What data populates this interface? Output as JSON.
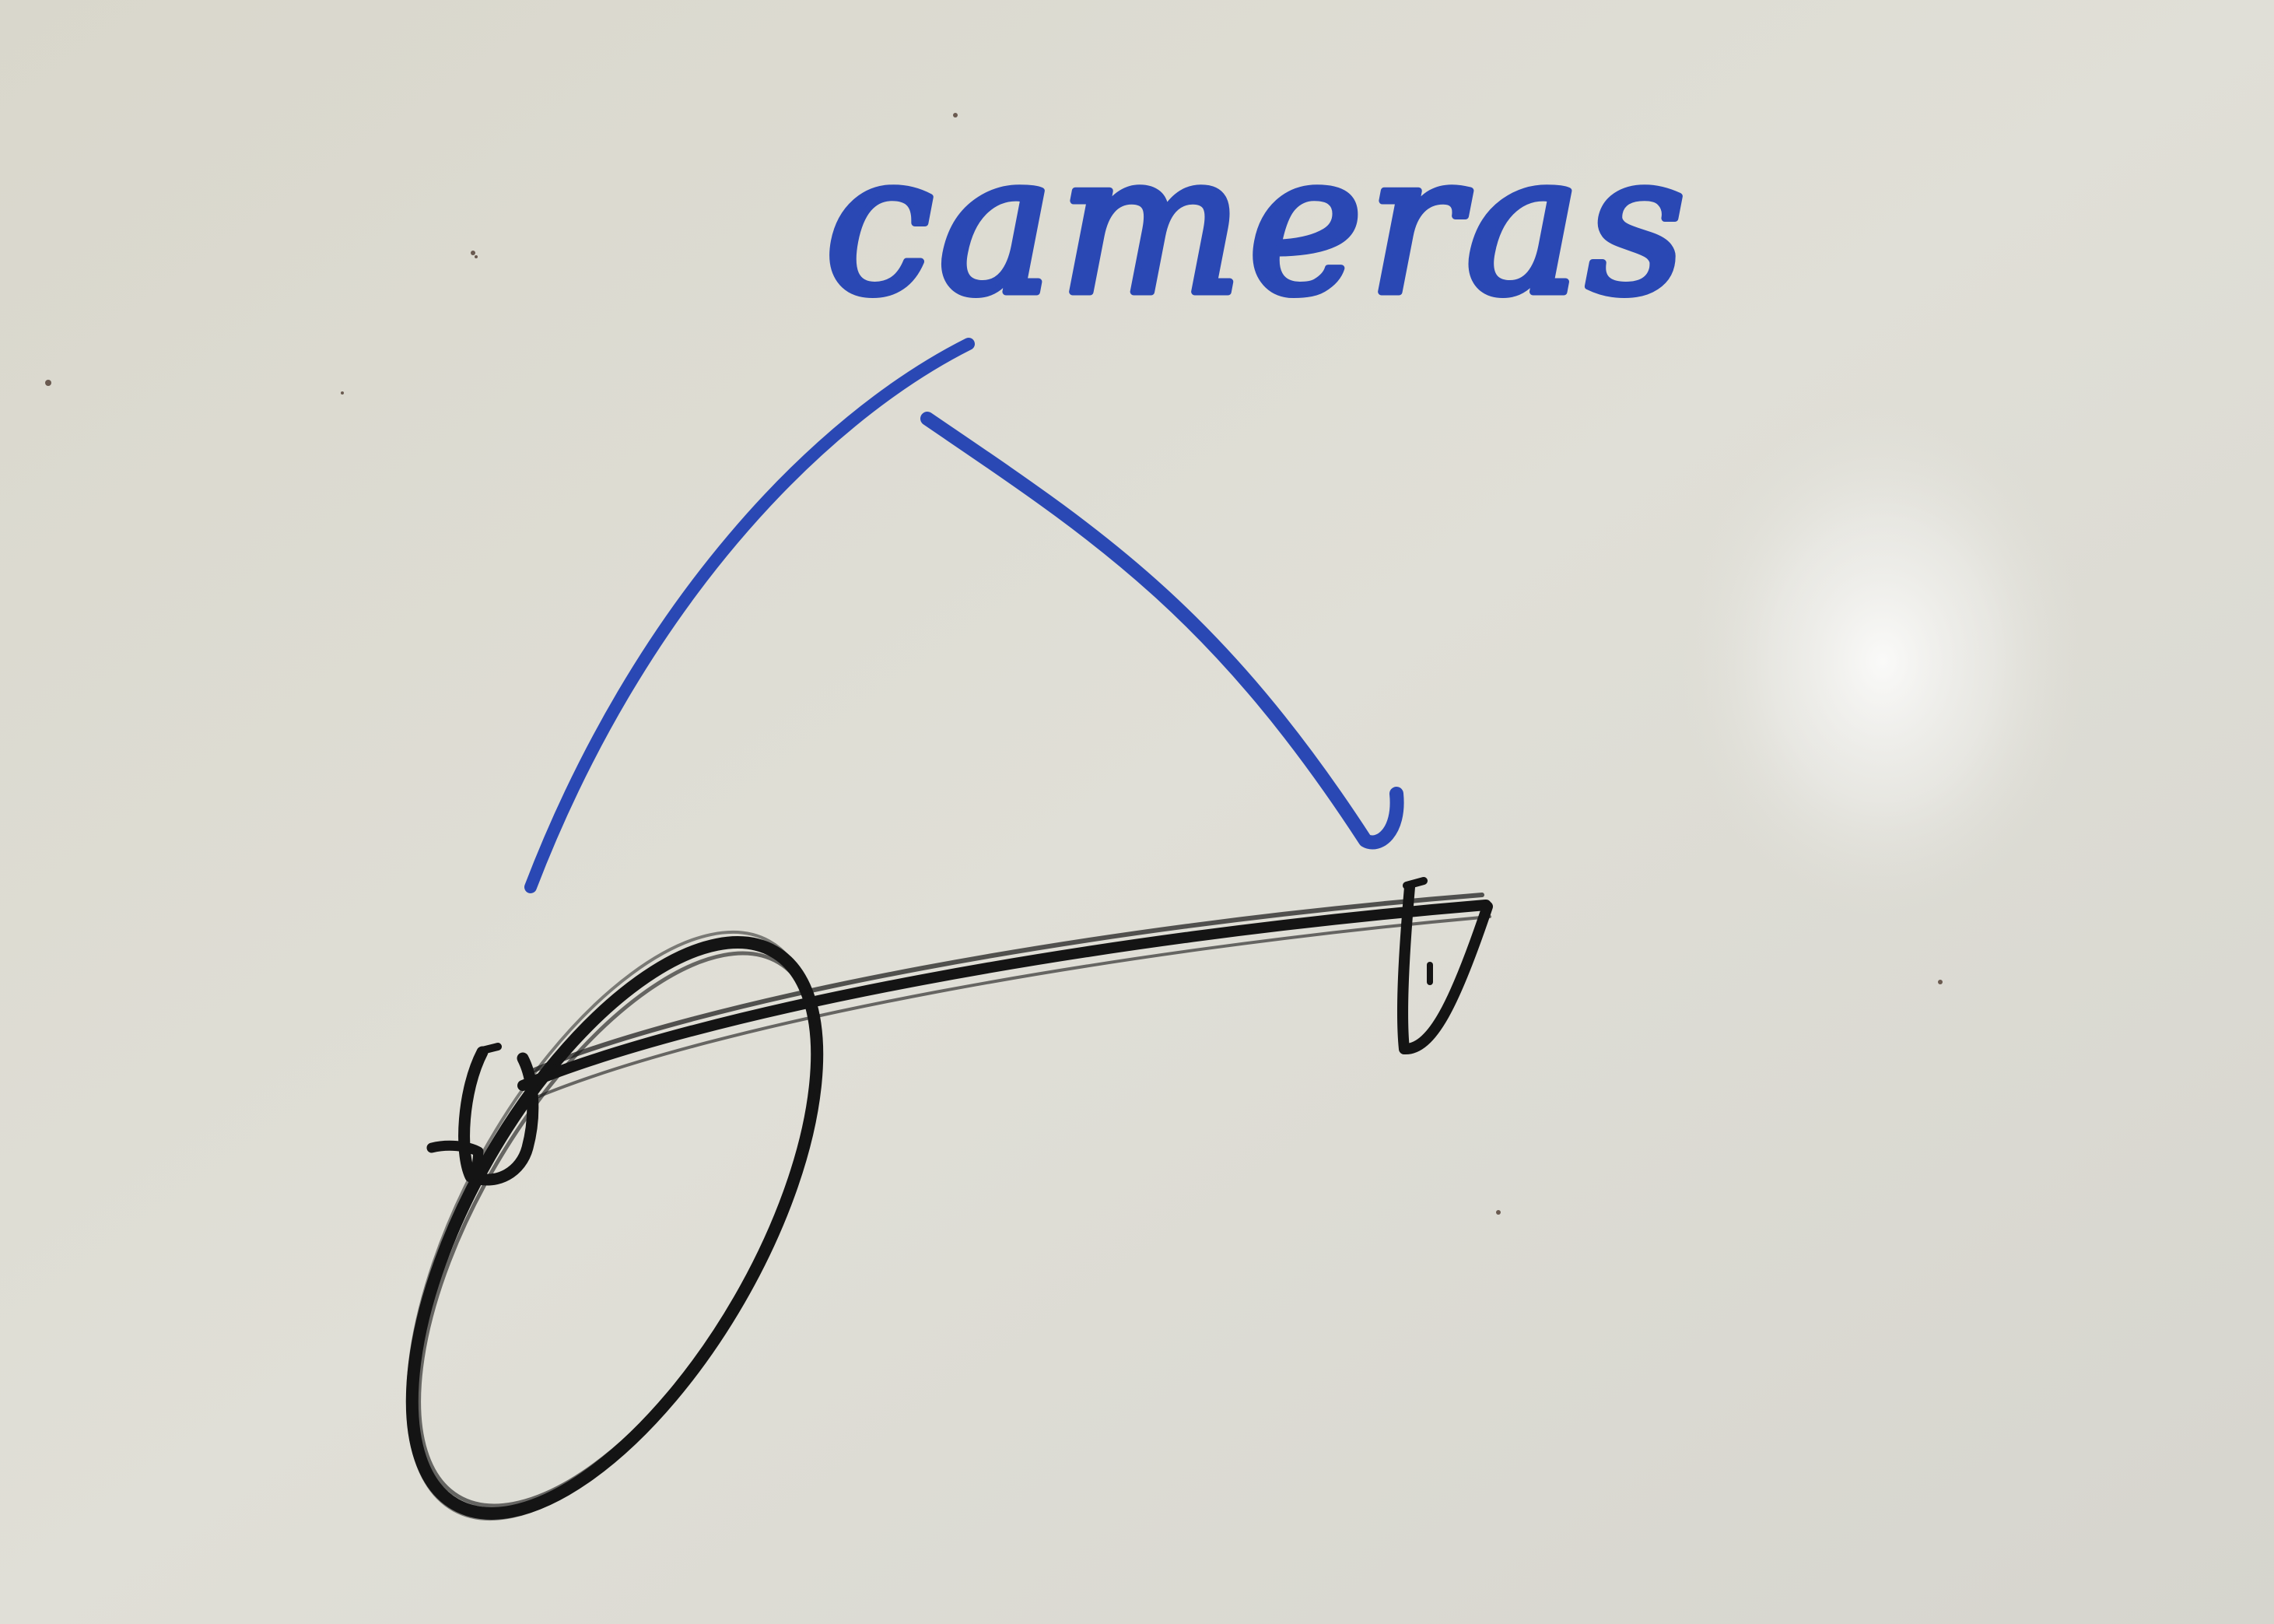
{
  "whiteboard": {
    "label_text": "cameras",
    "colors": {
      "board": "#dcdad0",
      "blue_marker": "#2a48b4",
      "black_marker": "#141414"
    }
  }
}
